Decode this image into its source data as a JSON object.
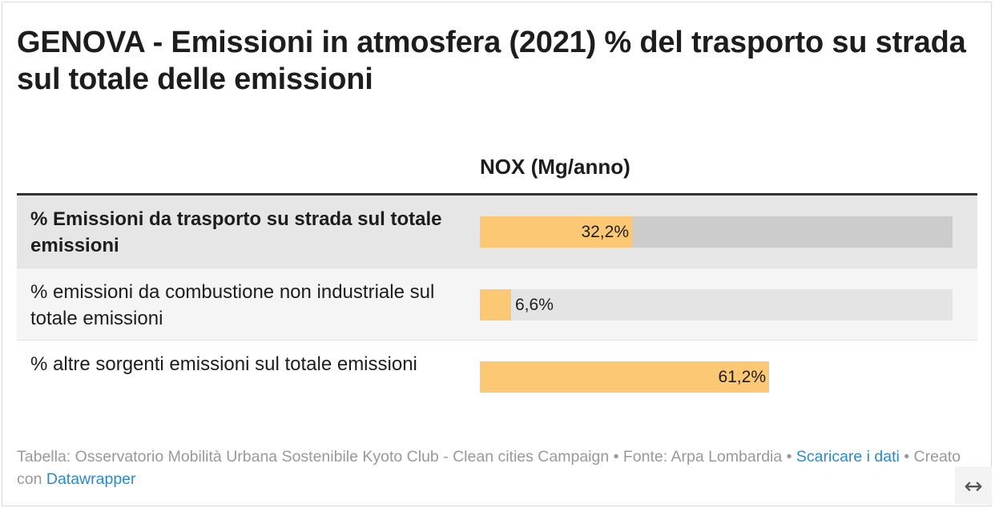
{
  "title": "GENOVA - Emissioni in atmosfera (2021) % del trasporto su strada sul totale delle emissioni",
  "chart_data": {
    "type": "bar",
    "column_header": "NOX (Mg/anno)",
    "xlim": [
      0,
      100
    ],
    "bar_color": "#fdc873",
    "rows": [
      {
        "label": "% Emissioni da trasporto su strada sul totale emissioni",
        "value": 32.2,
        "value_label": "32,2%"
      },
      {
        "label": "% emissioni da combustione non industriale sul totale emissioni",
        "value": 6.6,
        "value_label": "6,6%"
      },
      {
        "label": "% altre sorgenti emissioni sul totale emissioni",
        "value": 61.2,
        "value_label": "61,2%"
      }
    ]
  },
  "footer": {
    "source_text": "Tabella: Osservatorio Mobilità Urbana Sostenibile Kyoto Club - Clean cities Campaign • Fonte: Arpa Lombardia • ",
    "download_link": "Scaricare i dati",
    "created_text": " • Creato con ",
    "datawrapper_link": "Datawrapper"
  },
  "expand_icon": "↔"
}
